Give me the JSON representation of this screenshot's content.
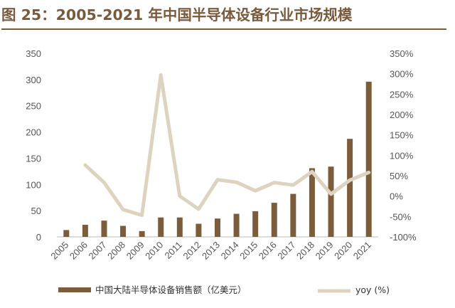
{
  "title": "图 25：2005-2021 年中国半导体设备行业市场规模",
  "chart_data": {
    "type": "bar+line",
    "categories": [
      "2005",
      "2006",
      "2007",
      "2008",
      "2009",
      "2010",
      "2011",
      "2012",
      "2013",
      "2014",
      "2015",
      "2016",
      "2017",
      "2018",
      "2019",
      "2020",
      "2021"
    ],
    "series": [
      {
        "name": "中国大陆半导体设备销售额（亿美元）",
        "type": "bar",
        "axis": "left",
        "values": [
          13,
          23,
          31,
          21,
          11,
          37,
          37,
          25,
          35,
          44,
          49,
          65,
          82,
          131,
          134,
          187,
          296
        ]
      },
      {
        "name": "yoy (%)",
        "type": "line",
        "axis": "right",
        "values": [
          null,
          76,
          33,
          -33,
          -47,
          297,
          0,
          -32,
          40,
          34,
          13,
          33,
          27,
          60,
          5,
          39,
          58
        ]
      }
    ],
    "left_axis": {
      "ylim": [
        0,
        350
      ],
      "ticks": [
        "0",
        "50",
        "100",
        "150",
        "200",
        "250",
        "300",
        "350"
      ]
    },
    "right_axis": {
      "ylim": [
        -100,
        350
      ],
      "ticks": [
        "-100%",
        "-50%",
        "0%",
        "50%",
        "100%",
        "150%",
        "200%",
        "250%",
        "300%",
        "350%"
      ]
    },
    "grid": false,
    "legend_position": "bottom",
    "colors": {
      "bar": "#7b5c3b",
      "line": "#ddd3bf",
      "title": "#7a5a3c"
    }
  }
}
